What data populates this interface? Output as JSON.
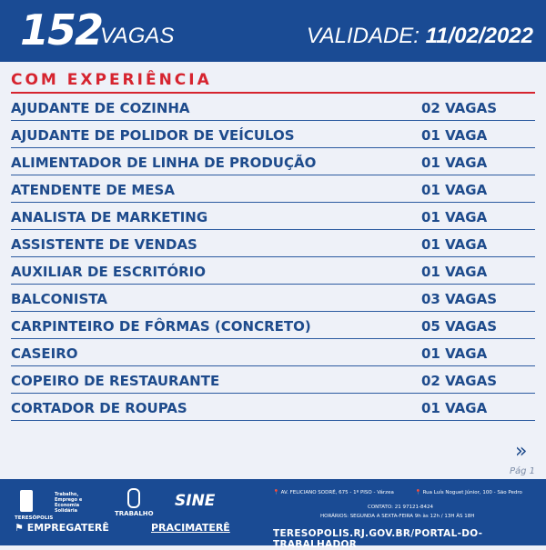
{
  "header": {
    "count": "152",
    "count_label": "VAGAS",
    "validity_label": "VALIDADE:",
    "validity_date": "11/02/2022"
  },
  "section": "COM EXPERIÊNCIA",
  "jobs": [
    {
      "title": "AJUDANTE DE COZINHA",
      "vacancies": "02 VAGAS"
    },
    {
      "title": "AJUDANTE DE POLIDOR DE VEÍCULOS",
      "vacancies": "01 VAGA"
    },
    {
      "title": "ALIMENTADOR DE LINHA DE PRODUÇÃO",
      "vacancies": "01 VAGA"
    },
    {
      "title": "ATENDENTE DE MESA",
      "vacancies": "01 VAGA"
    },
    {
      "title": "ANALISTA DE MARKETING",
      "vacancies": "01 VAGA"
    },
    {
      "title": "ASSISTENTE DE VENDAS",
      "vacancies": "01 VAGA"
    },
    {
      "title": "AUXILIAR DE ESCRITÓRIO",
      "vacancies": "01 VAGA"
    },
    {
      "title": "BALCONISTA",
      "vacancies": "03 VAGAS"
    },
    {
      "title": "CARPINTEIRO DE FÔRMAS (CONCRETO)",
      "vacancies": "05 VAGAS"
    },
    {
      "title": "CASEIRO",
      "vacancies": "01 VAGA"
    },
    {
      "title": "COPEIRO DE RESTAURANTE",
      "vacancies": "02 VAGAS"
    },
    {
      "title": "CORTADOR DE ROUPAS",
      "vacancies": "01 VAGA"
    }
  ],
  "pagination": {
    "next_icon": "double-chevron-right",
    "page": "Pág 1"
  },
  "footer": {
    "logos": {
      "prefeitura": "TERESÓPOLIS",
      "secretaria": "Trabalho, Emprego e Economia Solidária",
      "trabalho": "TRABALHO",
      "sine": "SINE",
      "empregatere": "EMPREGATERÊ",
      "pracimatere": "PRACIMATERÊ"
    },
    "address1": "AV. FELICIANO SODRÉ, 675 - 1º PISO - Várzea",
    "address2": "Rua Luís Noguet Júnior, 100 - São Pedro",
    "contact": "CONTATO: 21 97121-8424",
    "hours": "HORÁRIOS: SEGUNDA A SEXTA-FEIRA 9h às 12h / 13H ÀS 18H",
    "url": "TERESOPOLIS.RJ.GOV.BR/PORTAL-DO-TRABALHADOR"
  },
  "colors": {
    "primary": "#1a4b94",
    "accent": "#d6242f",
    "background": "#eef1f8"
  }
}
